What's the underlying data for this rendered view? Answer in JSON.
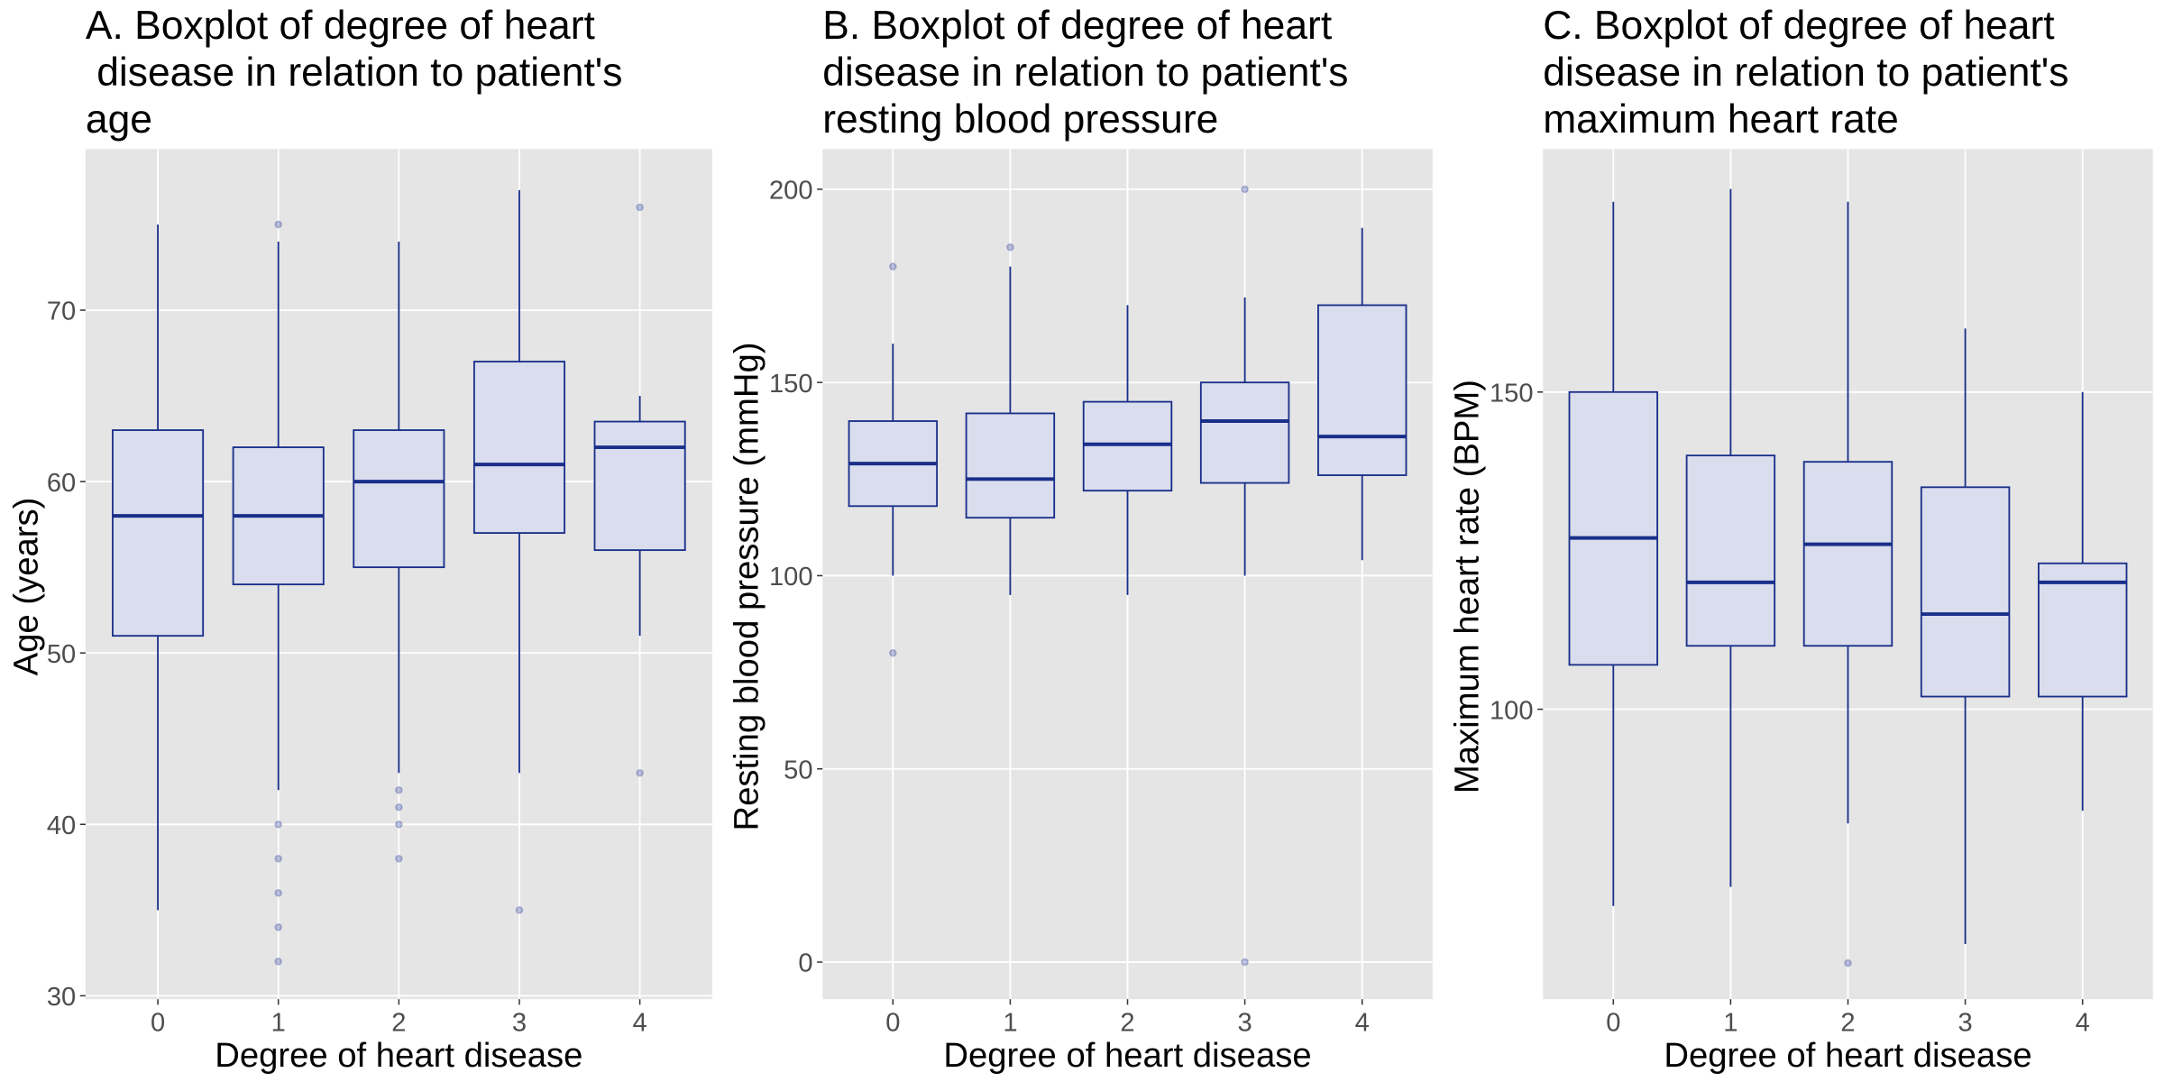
{
  "chart_data": [
    {
      "type": "box",
      "title": [
        "A. Boxplot of degree of heart",
        " disease in relation to patient's",
        "age"
      ],
      "x_label": "Degree of heart disease",
      "y_label": "Age (years)",
      "categories": [
        "0",
        "1",
        "2",
        "3",
        "4"
      ],
      "boxes": [
        {
          "min": 35,
          "q1": 51,
          "median": 58,
          "q3": 63,
          "max": 75,
          "outliers": []
        },
        {
          "min": 42,
          "q1": 54,
          "median": 58,
          "q3": 62,
          "max": 74,
          "outliers": [
            75,
            40,
            38,
            36,
            34,
            32
          ]
        },
        {
          "min": 43,
          "q1": 55,
          "median": 60,
          "q3": 63,
          "max": 74,
          "outliers": [
            42,
            41,
            40,
            38
          ]
        },
        {
          "min": 43,
          "q1": 57,
          "median": 61,
          "q3": 67,
          "max": 77,
          "outliers": [
            35
          ]
        },
        {
          "min": 51,
          "q1": 56,
          "median": 62,
          "q3": 63.5,
          "max": 65,
          "outliers": [
            76,
            43
          ]
        }
      ],
      "ylim": [
        29.8,
        79.4
      ],
      "yticks": [
        30,
        40,
        50,
        60,
        70
      ],
      "box_color": "#1a2f8a",
      "fill_color": "#d9dded",
      "outlier_color": "#2a3f9a",
      "grid": true
    },
    {
      "type": "box",
      "title": [
        "B. Boxplot of degree of heart",
        "disease in relation to patient's",
        "resting blood pressure"
      ],
      "x_label": "Degree of heart disease",
      "y_label": "Resting blood pressure (mmHg)",
      "categories": [
        "0",
        "1",
        "2",
        "3",
        "4"
      ],
      "boxes": [
        {
          "min": 100,
          "q1": 118,
          "median": 129,
          "q3": 140,
          "max": 160,
          "outliers": [
            180,
            80
          ]
        },
        {
          "min": 95,
          "q1": 115,
          "median": 125,
          "q3": 142,
          "max": 180,
          "outliers": [
            185
          ]
        },
        {
          "min": 95,
          "q1": 122,
          "median": 134,
          "q3": 145,
          "max": 170,
          "outliers": []
        },
        {
          "min": 100,
          "q1": 124,
          "median": 140,
          "q3": 150,
          "max": 172,
          "outliers": [
            200,
            0
          ]
        },
        {
          "min": 104,
          "q1": 126,
          "median": 136,
          "q3": 170,
          "max": 190,
          "outliers": []
        }
      ],
      "ylim": [
        -9.6,
        210.4
      ],
      "yticks": [
        0,
        50,
        100,
        150,
        200
      ],
      "box_color": "#1a2f8a",
      "fill_color": "#d9dded",
      "outlier_color": "#2a3f9a",
      "grid": true
    },
    {
      "type": "box",
      "title": [
        "C. Boxplot of degree of heart",
        "disease in relation to patient's",
        "maximum heart rate"
      ],
      "x_label": "Degree of heart disease",
      "y_label": "Maximum heart rate (BPM)",
      "categories": [
        "0",
        "1",
        "2",
        "3",
        "4"
      ],
      "boxes": [
        {
          "min": 69,
          "q1": 107,
          "median": 127,
          "q3": 150,
          "max": 180,
          "outliers": []
        },
        {
          "min": 72,
          "q1": 110,
          "median": 120,
          "q3": 140,
          "max": 182,
          "outliers": []
        },
        {
          "min": 82,
          "q1": 110,
          "median": 126,
          "q3": 139,
          "max": 180,
          "outliers": [
            60
          ]
        },
        {
          "min": 63,
          "q1": 102,
          "median": 115,
          "q3": 135,
          "max": 160,
          "outliers": []
        },
        {
          "min": 84,
          "q1": 102,
          "median": 120,
          "q3": 123,
          "max": 150,
          "outliers": []
        }
      ],
      "ylim": [
        54.3,
        188.3
      ],
      "yticks": [
        100,
        150
      ],
      "box_color": "#1a2f8a",
      "fill_color": "#d9dded",
      "outlier_color": "#2a3f9a",
      "grid": true
    }
  ]
}
